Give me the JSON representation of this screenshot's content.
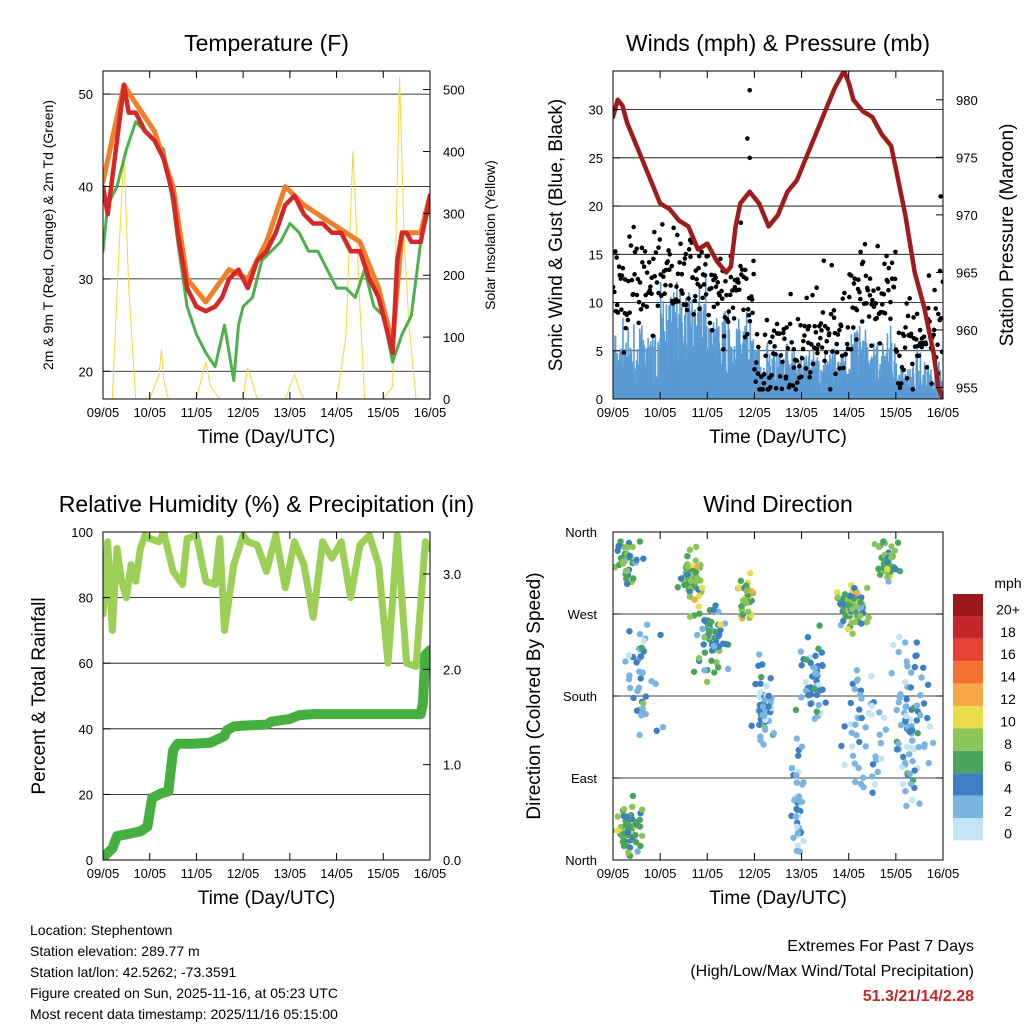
{
  "colors": {
    "temp_2m": "#d62728",
    "temp_9m": "#f07f2a",
    "dewpoint": "#4cb04c",
    "solar": "#f5d835",
    "gust": "#000000",
    "wind": "#5a9bd4",
    "pressure": "#a01c1c",
    "rh": "#9bcf55",
    "precip": "#45b040",
    "extremes_value": "#c5262b"
  },
  "chart_data": [
    {
      "id": "temperature",
      "type": "line",
      "title": "Temperature (F)",
      "xlabel": "Time (Day/UTC)",
      "ylabel": "2m & 9m T (Red, Orange) & 2m Td (Green)",
      "ylabel_right": "Solar Insolation (Yellow)",
      "x_range": [
        0,
        7
      ],
      "ylim": [
        17,
        52.5
      ],
      "ylim_right": [
        0,
        530
      ],
      "x_ticks": [
        "09/05",
        "10/05",
        "11/05",
        "12/05",
        "13/05",
        "14/05",
        "15/05",
        "16/05"
      ],
      "y_ticks": [
        20,
        30,
        40,
        50
      ],
      "y_ticks_right": [
        0,
        100,
        200,
        300,
        400,
        500
      ],
      "grid_y": [
        20,
        30,
        40,
        50
      ],
      "series": [
        {
          "name": "2m T",
          "axis": "left",
          "x": [
            0,
            0.1,
            0.25,
            0.45,
            0.55,
            0.7,
            0.9,
            1.1,
            1.3,
            1.5,
            1.6,
            1.8,
            2.0,
            2.2,
            2.4,
            2.55,
            2.7,
            2.9,
            3.1,
            3.3,
            3.5,
            3.7,
            3.9,
            4.1,
            4.3,
            4.5,
            4.7,
            4.9,
            5.1,
            5.3,
            5.5,
            5.7,
            5.9,
            6.1,
            6.2,
            6.3,
            6.4,
            6.5,
            6.6,
            6.8,
            7.0
          ],
          "values": [
            40,
            37,
            43,
            51,
            48,
            48,
            46,
            45,
            43,
            39,
            35,
            29,
            27,
            26.5,
            27,
            28,
            30,
            31,
            29,
            32,
            33,
            35,
            38,
            39,
            37,
            36,
            36,
            35,
            35,
            33,
            33,
            30,
            28,
            24,
            22,
            32,
            35,
            35,
            34,
            34,
            39
          ]
        },
        {
          "name": "9m T",
          "axis": "left",
          "x": [
            0,
            0.45,
            0.7,
            1.1,
            1.5,
            1.8,
            2.2,
            2.7,
            3.1,
            3.5,
            3.9,
            4.3,
            4.9,
            5.5,
            5.9,
            6.2,
            6.4,
            6.8,
            7.0
          ],
          "values": [
            40.5,
            51,
            49,
            46,
            40,
            30,
            27.5,
            31,
            30,
            34,
            40,
            38,
            36,
            34,
            29,
            23,
            35,
            35,
            39
          ]
        },
        {
          "name": "2m Td",
          "axis": "left",
          "x": [
            0,
            0.1,
            0.3,
            0.5,
            0.7,
            0.9,
            1.1,
            1.3,
            1.5,
            1.6,
            1.8,
            2.0,
            2.2,
            2.4,
            2.6,
            2.8,
            2.9,
            3.0,
            3.2,
            3.4,
            3.6,
            3.8,
            4.0,
            4.2,
            4.4,
            4.6,
            4.8,
            5.0,
            5.2,
            5.4,
            5.6,
            5.8,
            6.0,
            6.2,
            6.4,
            6.6,
            6.8,
            7.0
          ],
          "values": [
            33,
            38,
            40,
            44,
            47,
            46,
            45,
            44,
            38,
            34,
            27,
            24,
            22,
            20.5,
            25,
            19,
            25,
            27,
            28,
            32,
            33,
            34,
            36,
            35,
            33,
            33,
            31,
            29,
            29,
            28,
            31,
            27,
            26,
            21,
            24,
            26,
            34,
            38
          ]
        },
        {
          "name": "Solar Insolation",
          "axis": "right",
          "x": [
            0,
            0.2,
            0.35,
            0.45,
            0.55,
            0.7,
            1.0,
            1.2,
            1.25,
            1.3,
            1.4,
            1.6,
            2.0,
            2.1,
            2.2,
            2.3,
            2.5,
            2.8,
            3.0,
            3.05,
            3.1,
            3.2,
            3.3,
            3.5,
            3.9,
            4.0,
            4.1,
            4.2,
            4.3,
            4.5,
            5.0,
            5.2,
            5.35,
            5.5,
            5.6,
            6.0,
            6.2,
            6.35,
            6.45,
            6.55,
            6.7,
            7.0
          ],
          "values": [
            0,
            0,
            250,
            400,
            180,
            0,
            0,
            40,
            80,
            30,
            0,
            0,
            0,
            30,
            60,
            20,
            0,
            0,
            0,
            30,
            50,
            25,
            0,
            0,
            0,
            20,
            40,
            15,
            0,
            0,
            0,
            100,
            400,
            150,
            0,
            0,
            20,
            520,
            250,
            120,
            0,
            0
          ]
        }
      ]
    },
    {
      "id": "winds_pressure",
      "type": "scatter",
      "title": "Winds (mph) & Pressure (mb)",
      "xlabel": "Time (Day/UTC)",
      "ylabel": "Sonic Wind & Gust (Blue, Black)",
      "ylabel_right": "Station Pressure (Maroon)",
      "x_range": [
        0,
        7
      ],
      "ylim": [
        0,
        34
      ],
      "ylim_right": [
        954,
        982.5
      ],
      "x_ticks": [
        "09/05",
        "10/05",
        "11/05",
        "12/05",
        "13/05",
        "14/05",
        "15/05",
        "16/05"
      ],
      "y_ticks": [
        0,
        5,
        10,
        15,
        20,
        25,
        30
      ],
      "y_ticks_right": [
        955,
        960,
        965,
        970,
        975,
        980
      ],
      "grid_y": [
        5,
        10,
        15,
        20,
        25,
        30
      ],
      "series": [
        {
          "name": "Station Pressure",
          "axis": "right",
          "x": [
            0,
            0.1,
            0.2,
            0.3,
            0.5,
            0.7,
            0.9,
            1.0,
            1.2,
            1.4,
            1.6,
            1.8,
            2.0,
            2.2,
            2.4,
            2.5,
            2.6,
            2.7,
            2.9,
            3.1,
            3.3,
            3.5,
            3.7,
            3.9,
            4.1,
            4.3,
            4.5,
            4.7,
            4.9,
            5.0,
            5.1,
            5.3,
            5.5,
            5.7,
            5.9,
            6.0,
            6.2,
            6.4,
            6.6,
            6.8,
            6.9,
            7.0
          ],
          "values": [
            978.5,
            980,
            979.5,
            978,
            976,
            974,
            972,
            971,
            970.5,
            969.5,
            969,
            967,
            967.5,
            966,
            965,
            965.5,
            969,
            971,
            972,
            971,
            969,
            970,
            972,
            973,
            975,
            977,
            979,
            981,
            982.5,
            981.5,
            980,
            979,
            978.5,
            977,
            976,
            974,
            970,
            965,
            962,
            958,
            955,
            954
          ]
        },
        {
          "name": "Sonic Wind",
          "axis": "left",
          "level_by_day": [
            4,
            7,
            5,
            3,
            3,
            4,
            2
          ],
          "spread": 4
        },
        {
          "name": "Gust",
          "axis": "left",
          "level_by_day": [
            12,
            13,
            11,
            4,
            6,
            11,
            6
          ],
          "spread": 6,
          "extra_points": [
            [
              2.9,
              32
            ],
            [
              2.85,
              27
            ],
            [
              2.9,
              25
            ],
            [
              6.95,
              21
            ]
          ]
        }
      ]
    },
    {
      "id": "rh_precip",
      "type": "line",
      "title": "Relative Humidity (%) & Precipitation (in)",
      "xlabel": "Time (Day/UTC)",
      "ylabel": "Percent & Total Rainfall",
      "x_range": [
        0,
        7
      ],
      "ylim": [
        0,
        100
      ],
      "ylim_right": [
        0,
        3.44
      ],
      "x_ticks": [
        "09/05",
        "10/05",
        "11/05",
        "12/05",
        "13/05",
        "14/05",
        "15/05",
        "16/05"
      ],
      "y_ticks": [
        0,
        20,
        40,
        60,
        80,
        100
      ],
      "y_ticks_right": [
        "0.0",
        "1.0",
        "2.0",
        "3.0"
      ],
      "grid_y": [
        20,
        40,
        60,
        80,
        100
      ],
      "series": [
        {
          "name": "Relative Humidity",
          "axis": "left",
          "x": [
            0,
            0.1,
            0.2,
            0.3,
            0.4,
            0.5,
            0.6,
            0.7,
            0.8,
            0.9,
            1.0,
            1.2,
            1.3,
            1.5,
            1.7,
            1.8,
            2.0,
            2.2,
            2.4,
            2.5,
            2.6,
            2.8,
            3.0,
            3.1,
            3.3,
            3.5,
            3.7,
            3.9,
            4.1,
            4.3,
            4.5,
            4.7,
            4.9,
            5.1,
            5.3,
            5.5,
            5.7,
            5.9,
            6.1,
            6.3,
            6.5,
            6.7,
            6.9,
            7.0
          ],
          "values": [
            75,
            97,
            70,
            95,
            85,
            80,
            90,
            85,
            95,
            99,
            98,
            97,
            100,
            88,
            84,
            98,
            99,
            85,
            84,
            98,
            70,
            90,
            99,
            97,
            96,
            88,
            99,
            83,
            97,
            90,
            74,
            97,
            92,
            97,
            80,
            96,
            99,
            90,
            60,
            99,
            60,
            59,
            97,
            95
          ]
        },
        {
          "name": "Total Precipitation",
          "axis": "right",
          "x": [
            0,
            0.05,
            0.2,
            0.3,
            0.5,
            0.8,
            0.95,
            1.05,
            1.25,
            1.4,
            1.5,
            1.6,
            1.9,
            2.3,
            2.6,
            2.65,
            2.8,
            3.0,
            3.5,
            3.6,
            4.0,
            4.2,
            4.5,
            5.0,
            6.0,
            6.5,
            6.8,
            6.85,
            6.9,
            7.0
          ],
          "values": [
            0,
            0.05,
            0.12,
            0.25,
            0.27,
            0.3,
            0.35,
            0.65,
            0.7,
            0.72,
            1.15,
            1.22,
            1.22,
            1.23,
            1.3,
            1.36,
            1.4,
            1.41,
            1.42,
            1.45,
            1.48,
            1.52,
            1.53,
            1.53,
            1.53,
            1.53,
            1.53,
            1.65,
            2.15,
            2.2
          ]
        }
      ]
    },
    {
      "id": "wind_direction",
      "type": "scatter",
      "title": "Wind Direction",
      "xlabel": "Time (Day/UTC)",
      "ylabel": "Direction (Colored By Speed)",
      "x_range": [
        0,
        7
      ],
      "ylim": [
        0,
        360
      ],
      "x_ticks": [
        "09/05",
        "10/05",
        "11/05",
        "12/05",
        "13/05",
        "14/05",
        "15/05",
        "16/05"
      ],
      "y_ticks": [
        "North",
        "East",
        "South",
        "West",
        "North"
      ],
      "y_tick_values": [
        0,
        90,
        180,
        270,
        360
      ],
      "grid_y": [
        90,
        180,
        270,
        360
      ],
      "clusters": [
        {
          "x": 0.35,
          "dir": 35,
          "sx": 0.25,
          "sd": 30,
          "n": 70,
          "spd": 6
        },
        {
          "x": 0.3,
          "dir": 330,
          "sx": 0.3,
          "sd": 25,
          "n": 40,
          "spd": 6
        },
        {
          "x": 0.6,
          "dir": 200,
          "sx": 0.35,
          "sd": 60,
          "n": 40,
          "spd": 3
        },
        {
          "x": 1.65,
          "dir": 310,
          "sx": 0.25,
          "sd": 30,
          "n": 60,
          "spd": 7
        },
        {
          "x": 2.15,
          "dir": 240,
          "sx": 0.3,
          "sd": 35,
          "n": 60,
          "spd": 5
        },
        {
          "x": 2.8,
          "dir": 285,
          "sx": 0.2,
          "sd": 25,
          "n": 35,
          "spd": 8
        },
        {
          "x": 3.2,
          "dir": 170,
          "sx": 0.2,
          "sd": 40,
          "n": 45,
          "spd": 3
        },
        {
          "x": 3.9,
          "dir": 60,
          "sx": 0.15,
          "sd": 70,
          "n": 40,
          "spd": 2
        },
        {
          "x": 4.3,
          "dir": 200,
          "sx": 0.3,
          "sd": 60,
          "n": 45,
          "spd": 3
        },
        {
          "x": 5.1,
          "dir": 280,
          "sx": 0.3,
          "sd": 25,
          "n": 80,
          "spd": 7
        },
        {
          "x": 5.8,
          "dir": 330,
          "sx": 0.2,
          "sd": 25,
          "n": 40,
          "spd": 6
        },
        {
          "x": 6.3,
          "dir": 150,
          "sx": 0.4,
          "sd": 90,
          "n": 80,
          "spd": 3
        },
        {
          "x": 5.3,
          "dir": 140,
          "sx": 0.4,
          "sd": 70,
          "n": 50,
          "spd": 2
        }
      ],
      "colorbar": {
        "title": "mph",
        "labels": [
          "20+",
          "18",
          "16",
          "14",
          "12",
          "10",
          "8",
          "6",
          "4",
          "2",
          "0"
        ],
        "colors": [
          "#99191b",
          "#c5262b",
          "#e64234",
          "#f4702f",
          "#f9a848",
          "#eadc4a",
          "#8bc559",
          "#4aa55c",
          "#3d7fc0",
          "#7ab5e1",
          "#c3e4f5"
        ]
      }
    }
  ],
  "info": {
    "location": "Location: Stephentown",
    "elevation": "Station elevation: 289.77 m",
    "latlon": "Station lat/lon: 42.5262; -73.3591",
    "created": "Figure created on Sun, 2025-11-16, at 05:23 UTC",
    "recent": "Most recent data timestamp: 2025/11/16 05:15:00"
  },
  "extremes": {
    "title": "Extremes For Past 7 Days",
    "subtitle": "(High/Low/Max Wind/Total Precipitation)",
    "value": "51.3/21/14/2.28"
  }
}
